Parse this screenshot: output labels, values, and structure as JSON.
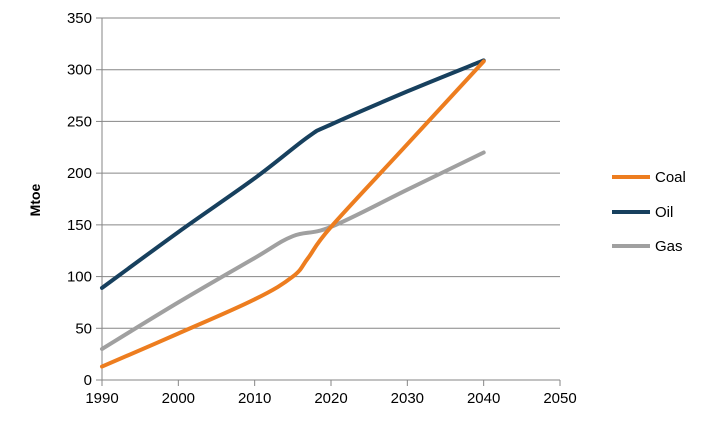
{
  "chart_data": {
    "type": "line",
    "ylabel": "Mtoe",
    "xlabel": "",
    "xlim": [
      1990,
      2050
    ],
    "ylim": [
      0,
      350
    ],
    "x_ticks": [
      "1990",
      "2000",
      "2010",
      "2020",
      "2030",
      "2040",
      "2050"
    ],
    "y_ticks": [
      "0",
      "50",
      "100",
      "150",
      "200",
      "250",
      "300",
      "350"
    ],
    "grid": true,
    "legend_position": "right",
    "series": [
      {
        "name": "Coal",
        "color": "#ED7D1F",
        "points": [
          [
            1990,
            13
          ],
          [
            2000,
            45
          ],
          [
            2010,
            78
          ],
          [
            2015,
            100
          ],
          [
            2017,
            118
          ],
          [
            2020,
            148
          ],
          [
            2030,
            228
          ],
          [
            2040,
            308
          ]
        ]
      },
      {
        "name": "Oil",
        "color": "#17405E",
        "points": [
          [
            1990,
            89
          ],
          [
            2000,
            143
          ],
          [
            2010,
            195
          ],
          [
            2017,
            235
          ],
          [
            2020,
            247
          ],
          [
            2030,
            279
          ],
          [
            2040,
            309
          ]
        ]
      },
      {
        "name": "Gas",
        "color": "#A0A0A0",
        "points": [
          [
            1990,
            30
          ],
          [
            2000,
            75
          ],
          [
            2010,
            118
          ],
          [
            2015,
            139
          ],
          [
            2020,
            148
          ],
          [
            2030,
            184
          ],
          [
            2040,
            220
          ]
        ]
      }
    ]
  }
}
